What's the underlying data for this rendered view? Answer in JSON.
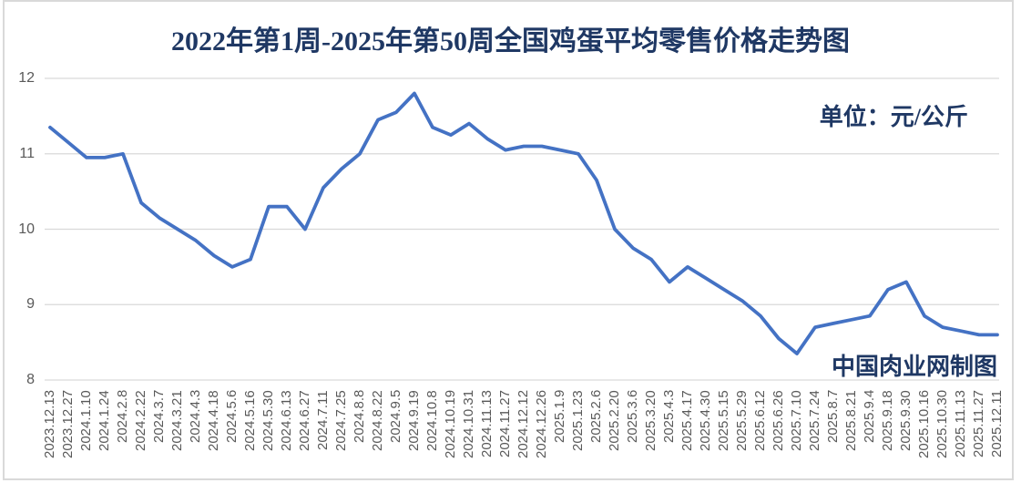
{
  "title": "2022年第1周-2025年第50周全国鸡蛋平均零售价格走势图",
  "unit_label": "单位：元/公斤",
  "watermark": "中国肉业网制图",
  "colors": {
    "accent": "#4472C4",
    "heading": "#1F3864",
    "axis_text": "#595959",
    "gridline": "#D9D9D9",
    "frame_border": "#D9D9D9",
    "background": "#FFFFFF"
  },
  "chart_data": {
    "type": "line",
    "title": "2022年第1周-2025年第50周全国鸡蛋平均零售价格走势图",
    "unit": "元/公斤",
    "ylim": [
      8,
      12
    ],
    "y_ticks": [
      8,
      9,
      10,
      11,
      12
    ],
    "grid": true,
    "legend_position": "none",
    "categories": [
      "2023.12.13",
      "2023.12.27",
      "2024.1.10",
      "2024.1.24",
      "2024.2.8",
      "2024.2.22",
      "2024.3.7",
      "2024.3.21",
      "2024.4.3",
      "2024.4.18",
      "2024.5.6",
      "2024.5.16",
      "2024.5.30",
      "2024.6.13",
      "2024.6.27",
      "2024.7.11",
      "2024.7.25",
      "2024.8.8",
      "2024.8.22",
      "2024.9.5",
      "2024.9.19",
      "2024.10.8",
      "2024.10.19",
      "2024.10.31",
      "2024.11.13",
      "2024.11.27",
      "2024.12.12",
      "2024.12.26",
      "2025.1.9",
      "2025.1.23",
      "2025.2.6",
      "2025.2.20",
      "2025.3.6",
      "2025.3.20",
      "2025.4.3",
      "2025.4.17",
      "2025.4.30",
      "2025.5.15",
      "2025.5.29",
      "2025.6.12",
      "2025.6.26",
      "2025.7.10",
      "2025.7.24",
      "2025.8.7",
      "2025.8.21",
      "2025.9.4",
      "2025.9.18",
      "2025.9.30",
      "2025.10.16",
      "2025.10.30",
      "2025.11.13",
      "2025.11.27",
      "2025.12.11"
    ],
    "values": [
      11.35,
      11.15,
      10.95,
      10.95,
      11.0,
      10.35,
      10.15,
      10.0,
      9.85,
      9.65,
      9.5,
      9.6,
      10.3,
      10.3,
      10.0,
      10.55,
      10.8,
      11.0,
      11.45,
      11.55,
      11.8,
      11.35,
      11.25,
      11.4,
      11.2,
      11.05,
      11.1,
      11.1,
      11.05,
      11.0,
      10.65,
      10.0,
      9.75,
      9.6,
      9.3,
      9.5,
      9.35,
      9.2,
      9.05,
      8.85,
      8.55,
      8.35,
      8.7,
      8.75,
      8.8,
      8.85,
      9.2,
      9.3,
      8.85,
      8.7,
      8.65,
      8.6,
      8.6
    ]
  }
}
